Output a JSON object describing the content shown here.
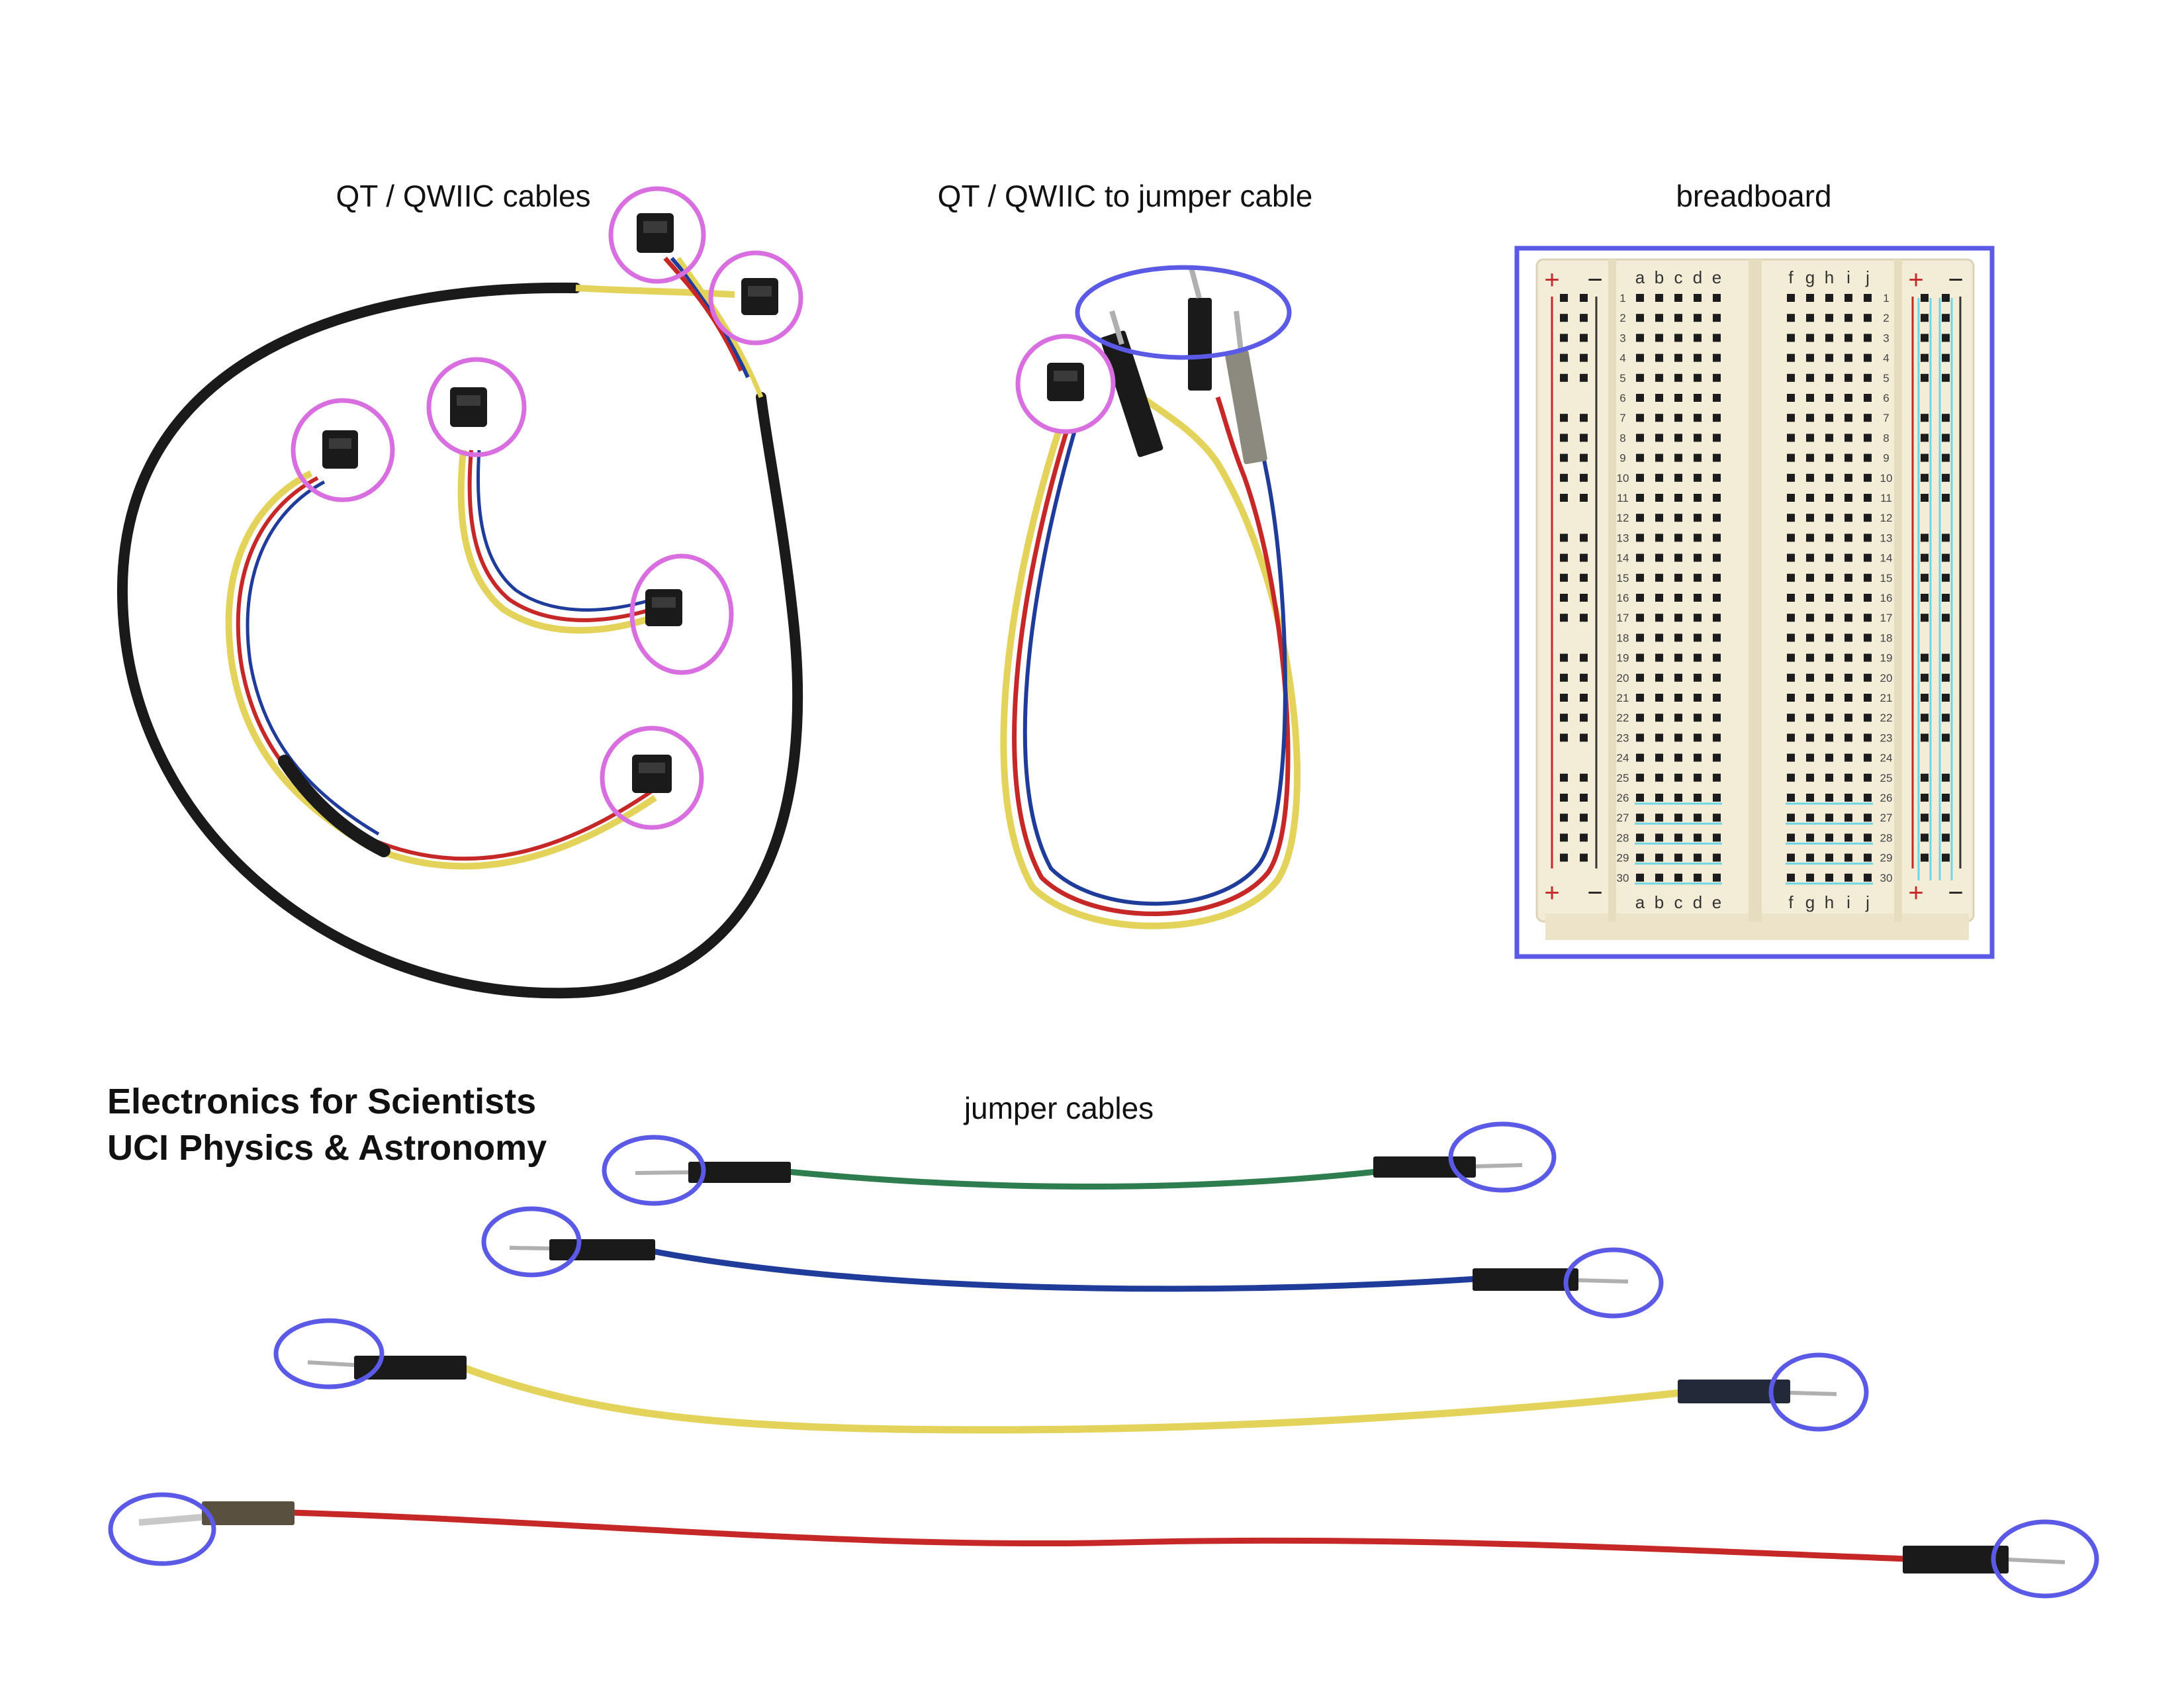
{
  "labels": {
    "qt_cables": "QT / QWIIC cables",
    "qt_to_jumper": "QT / QWIIC to jumper cable",
    "breadboard": "breadboard",
    "jumper_cables": "jumper cables",
    "credit_line1": "Electronics for Scientists",
    "credit_line2": "UCI Physics & Astronomy"
  },
  "breadboard": {
    "column_letters_left": [
      "a",
      "b",
      "c",
      "d",
      "e"
    ],
    "column_letters_right": [
      "f",
      "g",
      "h",
      "i",
      "j"
    ],
    "row_count": 30,
    "rail_plus": "+",
    "rail_minus": "−"
  },
  "colors": {
    "qt_highlight": "#d86ee0",
    "jumper_highlight": "#5a5ae6",
    "breadboard_frame": "#5a5ae6",
    "breadboard_body": "#f3ecd7",
    "wire_black": "#1a1a1a",
    "wire_blue": "#1f3c9a",
    "wire_red": "#c62828",
    "wire_yellow": "#e3d35a",
    "wire_green": "#2e7d4f"
  },
  "icons": {
    "qt_connector": "qt-connector-icon",
    "jumper_pin": "jumper-pin-icon"
  }
}
